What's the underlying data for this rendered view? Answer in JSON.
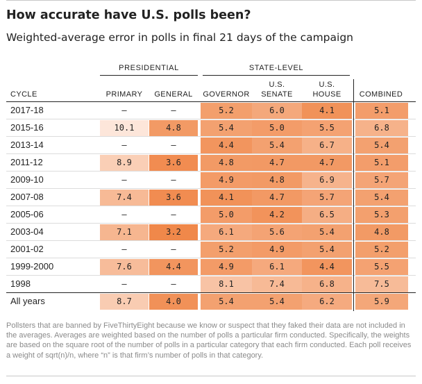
{
  "title": "How accurate have U.S. polls been?",
  "subtitle": "Weighted-average error in polls in final 21 days of the campaign",
  "groups": {
    "presidential": "PRESIDENTIAL",
    "state_level": "STATE-LEVEL"
  },
  "columns": {
    "cycle": "CYCLE",
    "primary": "PRIMARY",
    "general": "GENERAL",
    "governor": "GOVERNOR",
    "senate_1": "U.S.",
    "senate_2": "SENATE",
    "house_1": "U.S.",
    "house_2": "HOUSE",
    "combined": "COMBINED"
  },
  "footnote": "Pollsters that are banned by FiveThirtyEight because we know or suspect that they faked their data are not included in the averages. Averages are weighted based on the number of polls a particular firm conducted. Specifically, the weights are based on the square root of the number of polls in a particular category that each firm conducted. Each poll receives a weight of sqrt(n)/n, where “n” is that firm’s number of polls in that category.",
  "chart_data": {
    "type": "table",
    "title": "How accurate have U.S. polls been?",
    "subtitle": "Weighted-average error in polls in final 21 days of the campaign",
    "column_keys": [
      "primary",
      "general",
      "governor",
      "senate",
      "house",
      "combined"
    ],
    "color_scale": {
      "low": "#fde6da",
      "high": "#f0884a",
      "empty": "#ffffff"
    },
    "rows": [
      {
        "cycle": "2017-18",
        "values": [
          null,
          null,
          5.2,
          6.0,
          4.1,
          5.1
        ]
      },
      {
        "cycle": "2015-16",
        "values": [
          10.1,
          4.8,
          5.4,
          5.0,
          5.5,
          6.8
        ]
      },
      {
        "cycle": "2013-14",
        "values": [
          null,
          null,
          4.4,
          5.4,
          6.7,
          5.4
        ]
      },
      {
        "cycle": "2011-12",
        "values": [
          8.9,
          3.6,
          4.8,
          4.7,
          4.7,
          5.1
        ]
      },
      {
        "cycle": "2009-10",
        "values": [
          null,
          null,
          4.9,
          4.8,
          6.9,
          5.7
        ]
      },
      {
        "cycle": "2007-08",
        "values": [
          7.4,
          3.6,
          4.1,
          4.7,
          5.7,
          5.4
        ]
      },
      {
        "cycle": "2005-06",
        "values": [
          null,
          null,
          5.0,
          4.2,
          6.5,
          5.3
        ]
      },
      {
        "cycle": "2003-04",
        "values": [
          7.1,
          3.2,
          6.1,
          5.6,
          5.4,
          4.8
        ]
      },
      {
        "cycle": "2001-02",
        "values": [
          null,
          null,
          5.2,
          4.9,
          5.4,
          5.2
        ]
      },
      {
        "cycle": "1999-2000",
        "values": [
          7.6,
          4.4,
          4.9,
          6.1,
          4.4,
          5.5
        ]
      },
      {
        "cycle": "1998",
        "values": [
          null,
          null,
          8.1,
          7.4,
          6.8,
          7.5
        ]
      },
      {
        "cycle": "All years",
        "values": [
          8.7,
          4.0,
          5.4,
          5.4,
          6.2,
          5.9
        ]
      }
    ],
    "empty_symbol": "—"
  }
}
